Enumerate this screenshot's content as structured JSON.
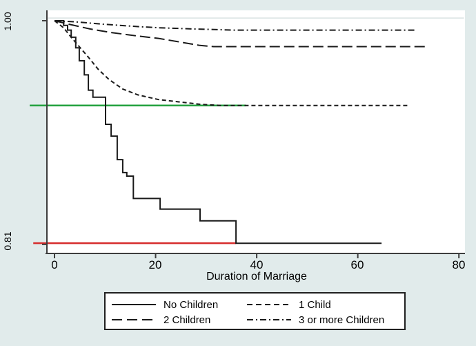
{
  "figure": {
    "background": "#e1ebeb",
    "x_axis": {
      "label": "Duration of Marriage",
      "ticks": [
        "0",
        "20",
        "40",
        "60",
        "80"
      ]
    },
    "y_axis": {
      "ticks": [
        "1.00",
        "0.81"
      ]
    }
  },
  "chart_data": {
    "type": "line",
    "subtype": "kaplan-meier-survival-steps",
    "title": "",
    "xlabel": "Duration of Marriage",
    "ylabel": "",
    "xlim": [
      -1.5,
      81.2
    ],
    "ylim": [
      0.8023,
      1.0088
    ],
    "x_ticks": [
      0,
      20,
      40,
      60,
      80
    ],
    "y_ticks": [
      1.0,
      0.81
    ],
    "grid": false,
    "legend_position": "bottom",
    "axis_color": "#3d3d3d",
    "curve_color": "#1a1a1a",
    "series": [
      {
        "name": "No Children",
        "line_style": "solid",
        "color": "#1a1a1a",
        "points": [
          [
            0,
            1.0
          ],
          [
            1.8,
            1.0
          ],
          [
            1.8,
            0.996
          ],
          [
            2.6,
            0.996
          ],
          [
            2.6,
            0.992
          ],
          [
            3.3,
            0.992
          ],
          [
            3.3,
            0.986
          ],
          [
            4.2,
            0.986
          ],
          [
            4.2,
            0.977
          ],
          [
            4.9,
            0.977
          ],
          [
            4.9,
            0.966
          ],
          [
            5.9,
            0.966
          ],
          [
            5.9,
            0.954
          ],
          [
            6.7,
            0.954
          ],
          [
            6.7,
            0.941
          ],
          [
            7.6,
            0.941
          ],
          [
            7.6,
            0.935
          ],
          [
            10.1,
            0.935
          ],
          [
            10.1,
            0.912
          ],
          [
            11.2,
            0.912
          ],
          [
            11.2,
            0.902
          ],
          [
            12.4,
            0.902
          ],
          [
            12.4,
            0.882
          ],
          [
            13.5,
            0.882
          ],
          [
            13.5,
            0.871
          ],
          [
            14.3,
            0.871
          ],
          [
            14.3,
            0.868
          ],
          [
            15.6,
            0.868
          ],
          [
            15.6,
            0.849
          ],
          [
            20.9,
            0.849
          ],
          [
            20.9,
            0.84
          ],
          [
            28.8,
            0.84
          ],
          [
            28.8,
            0.83
          ],
          [
            35.9,
            0.83
          ],
          [
            35.9,
            0.811
          ],
          [
            64.7,
            0.811
          ]
        ]
      },
      {
        "name": "1 Child",
        "line_style": "short-dash",
        "color": "#1a1a1a",
        "points": [
          [
            0,
            1.0
          ],
          [
            1.8,
            0.994
          ],
          [
            3.5,
            0.985
          ],
          [
            4.9,
            0.978
          ],
          [
            6.7,
            0.969
          ],
          [
            8.6,
            0.959
          ],
          [
            10.8,
            0.95
          ],
          [
            13.5,
            0.942
          ],
          [
            16.5,
            0.937
          ],
          [
            20.6,
            0.933
          ],
          [
            24.7,
            0.931
          ],
          [
            28.8,
            0.929
          ],
          [
            32.9,
            0.928
          ],
          [
            69.8,
            0.928
          ]
        ]
      },
      {
        "name": "2 Children",
        "line_style": "long-dash",
        "color": "#1a1a1a",
        "points": [
          [
            0,
            1.0
          ],
          [
            2.9,
            0.997
          ],
          [
            7.0,
            0.993
          ],
          [
            11.1,
            0.99
          ],
          [
            16.5,
            0.987
          ],
          [
            20.6,
            0.985
          ],
          [
            24.7,
            0.982
          ],
          [
            28.8,
            0.979
          ],
          [
            31.5,
            0.978
          ],
          [
            73.6,
            0.978
          ]
        ]
      },
      {
        "name": "3 or more Children",
        "line_style": "dash-dot",
        "color": "#1a1a1a",
        "points": [
          [
            0,
            1.0
          ],
          [
            4.2,
            0.999
          ],
          [
            9.7,
            0.997
          ],
          [
            16.5,
            0.995
          ],
          [
            20.6,
            0.994
          ],
          [
            27.4,
            0.993
          ],
          [
            35.6,
            0.992
          ],
          [
            71.5,
            0.992
          ]
        ]
      }
    ],
    "reference_lines": [
      {
        "name": "top-faint-gridline",
        "color": "#d9e2e2",
        "width": 1.5,
        "y": 1.0023,
        "x_start": -1.3,
        "x_end": 81.0
      },
      {
        "name": "green-reference-line",
        "color": "#22a13e",
        "width": 2.5,
        "y": 0.928,
        "x_start": -4.9,
        "x_end": 37.9
      },
      {
        "name": "red-reference-line",
        "color": "#d62b2b",
        "width": 2.5,
        "y": 0.811,
        "x_start": -4.2,
        "x_end": 35.9
      }
    ]
  },
  "legend": {
    "items": [
      {
        "label": "No Children",
        "line_style": "solid"
      },
      {
        "label": "1 Child",
        "line_style": "short-dash"
      },
      {
        "label": "2 Children",
        "line_style": "long-dash"
      },
      {
        "label": "3 or more Children",
        "line_style": "dash-dot"
      }
    ]
  }
}
